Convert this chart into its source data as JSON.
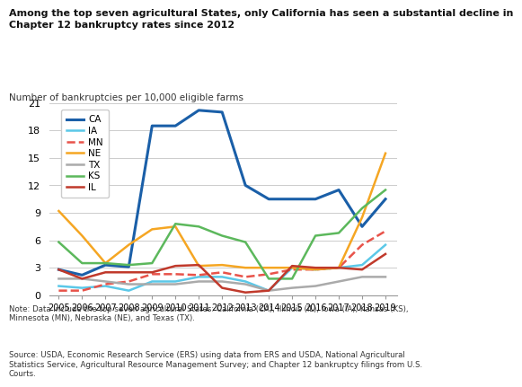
{
  "title_line1": "Among the top seven agricultural States, only California has seen a substantial decline in",
  "title_line2": "Chapter 12 bankruptcy rates since 2012",
  "ylabel": "Number of bankruptcies per 10,000 eligible farms",
  "note": "Note: Data include the top seven agricultural States: California (CA), Illinois (IL), Iowa (IA), Kansas (KS),\nMinnesota (MN), Nebraska (NE), and Texas (TX).",
  "source": "Source: USDA, Economic Research Service (ERS) using data from ERS and USDA, National Agricultural\nStatistics Service, Agricultural Resource Management Survey; and Chapter 12 bankruptcy filings from U.S.\nCourts.",
  "years": [
    2005,
    2006,
    2007,
    2008,
    2009,
    2010,
    2011,
    2012,
    2013,
    2014,
    2015,
    2016,
    2017,
    2018,
    2019
  ],
  "series": {
    "CA": {
      "color": "#1a5fa8",
      "linestyle": "solid",
      "linewidth": 2.2,
      "values": [
        2.8,
        2.2,
        3.3,
        3.1,
        18.5,
        18.5,
        20.2,
        20.0,
        12.0,
        10.5,
        10.5,
        10.5,
        11.5,
        7.5,
        10.5
      ]
    },
    "IA": {
      "color": "#5bc8e8",
      "linestyle": "solid",
      "linewidth": 1.8,
      "values": [
        1.0,
        0.8,
        1.0,
        0.5,
        1.5,
        1.5,
        2.0,
        2.0,
        1.5,
        0.5,
        3.0,
        2.8,
        3.0,
        3.3,
        5.5
      ]
    },
    "MN": {
      "color": "#e8534a",
      "linestyle": "dashed",
      "linewidth": 1.8,
      "values": [
        0.5,
        0.5,
        1.2,
        1.5,
        2.3,
        2.3,
        2.2,
        2.5,
        2.0,
        2.3,
        2.8,
        2.8,
        3.0,
        5.5,
        7.0
      ]
    },
    "NE": {
      "color": "#f5a623",
      "linestyle": "solid",
      "linewidth": 1.8,
      "values": [
        9.2,
        6.5,
        3.5,
        5.5,
        7.2,
        7.5,
        3.2,
        3.3,
        3.0,
        3.0,
        3.0,
        2.8,
        3.0,
        8.5,
        15.5
      ]
    },
    "TX": {
      "color": "#aaaaaa",
      "linestyle": "solid",
      "linewidth": 1.8,
      "values": [
        1.8,
        1.8,
        1.5,
        1.2,
        1.2,
        1.2,
        1.5,
        1.5,
        1.2,
        0.5,
        0.8,
        1.0,
        1.5,
        2.0,
        2.0
      ]
    },
    "KS": {
      "color": "#5cb85c",
      "linestyle": "solid",
      "linewidth": 1.8,
      "values": [
        5.8,
        3.5,
        3.5,
        3.3,
        3.5,
        7.8,
        7.5,
        6.5,
        5.8,
        1.8,
        1.8,
        6.5,
        6.8,
        9.5,
        11.5
      ]
    },
    "IL": {
      "color": "#c0392b",
      "linestyle": "solid",
      "linewidth": 1.8,
      "values": [
        2.8,
        1.8,
        2.5,
        2.5,
        2.5,
        3.2,
        3.3,
        0.8,
        0.3,
        0.5,
        3.2,
        3.0,
        3.0,
        2.8,
        4.5
      ]
    }
  },
  "ylim": [
    0,
    21
  ],
  "yticks": [
    0,
    3,
    6,
    9,
    12,
    15,
    18,
    21
  ],
  "background_color": "#ffffff",
  "grid_color": "#cccccc"
}
